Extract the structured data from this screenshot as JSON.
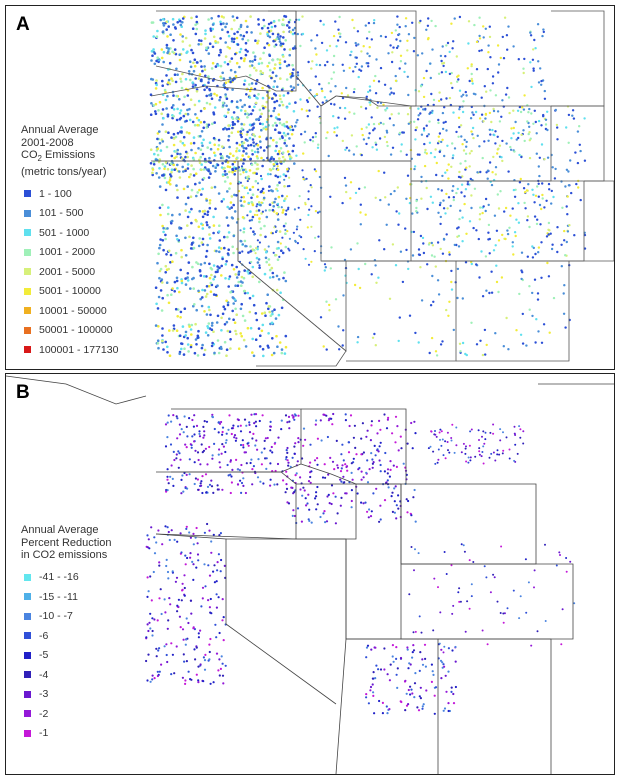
{
  "panels": [
    {
      "letter": "A",
      "legend": {
        "title_lines": [
          "Annual Average",
          "2001-2008"
        ],
        "co2_line": {
          "prefix": "CO",
          "subscript": "2",
          "suffix": " Emissions"
        },
        "units_line": "(metric tons/year)",
        "items": [
          {
            "label": "1 - 100",
            "color": "#2b4fd6"
          },
          {
            "label": "101 - 500",
            "color": "#4a8ed8"
          },
          {
            "label": "501 - 1000",
            "color": "#5fe0ee"
          },
          {
            "label": "1001 - 2000",
            "color": "#9ff0b8"
          },
          {
            "label": "2001 - 5000",
            "color": "#d7f07a"
          },
          {
            "label": "5001 - 10000",
            "color": "#f2ec3a"
          },
          {
            "label": "10001 - 50000",
            "color": "#f0b020"
          },
          {
            "label": "50001 - 100000",
            "color": "#e87020"
          },
          {
            "label": "100001 - 177130",
            "color": "#d81818"
          }
        ]
      }
    },
    {
      "letter": "B",
      "legend": {
        "title_lines": [
          "Annual Average",
          "Percent Reduction",
          "in CO2 emissions"
        ],
        "items": [
          {
            "label": "-41 - -16",
            "color": "#62e6ee"
          },
          {
            "label": "-15 - -11",
            "color": "#4fb0e8"
          },
          {
            "label": "-10 - -7",
            "color": "#4a84e0"
          },
          {
            "label": "-6",
            "color": "#3050d8"
          },
          {
            "label": "-5",
            "color": "#2020c8"
          },
          {
            "label": "-4",
            "color": "#3020b8"
          },
          {
            "label": "-3",
            "color": "#6a18d0"
          },
          {
            "label": "-2",
            "color": "#9418d8"
          },
          {
            "label": "-1",
            "color": "#c418d8"
          }
        ]
      }
    }
  ]
}
